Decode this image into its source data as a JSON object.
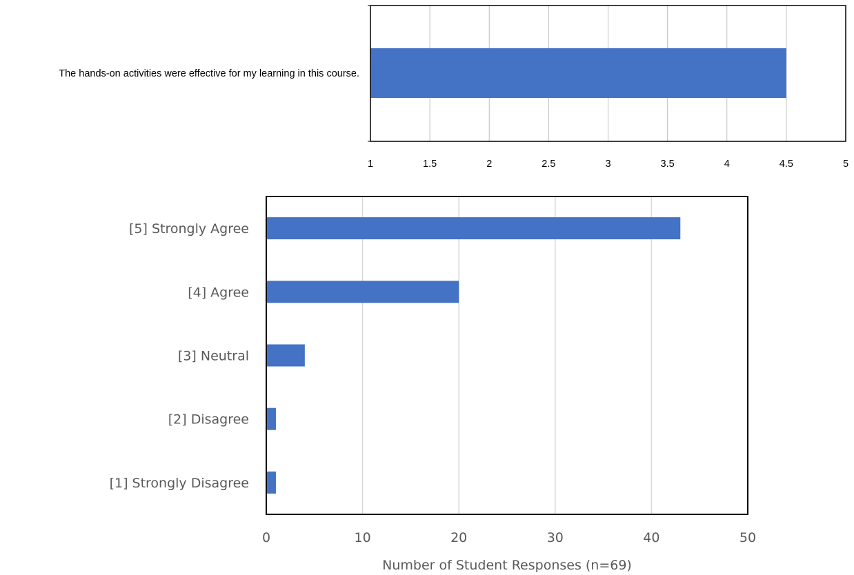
{
  "chart_data": [
    {
      "type": "bar",
      "orientation": "horizontal",
      "categories": [
        "The hands-on activities were effective for my learning in this course."
      ],
      "values": [
        4.5
      ],
      "xlim": [
        1,
        5
      ],
      "xticks": [
        "1",
        "1.5",
        "2",
        "2.5",
        "3",
        "3.5",
        "4",
        "4.5",
        "5"
      ],
      "grid": true,
      "legend": "none",
      "bar_color": "#4472C4"
    },
    {
      "type": "bar",
      "orientation": "horizontal",
      "categories": [
        "[5] Strongly Agree",
        "[4] Agree",
        "[3] Neutral",
        "[2] Disagree",
        "[1] Strongly Disagree"
      ],
      "values": [
        43,
        20,
        4,
        1,
        1
      ],
      "xlabel": "Number of Student Responses (n=69)",
      "xlim": [
        0,
        50
      ],
      "xticks": [
        "0",
        "10",
        "20",
        "30",
        "40",
        "50"
      ],
      "grid": true,
      "legend": "none",
      "bar_color": "#4472C4"
    }
  ]
}
